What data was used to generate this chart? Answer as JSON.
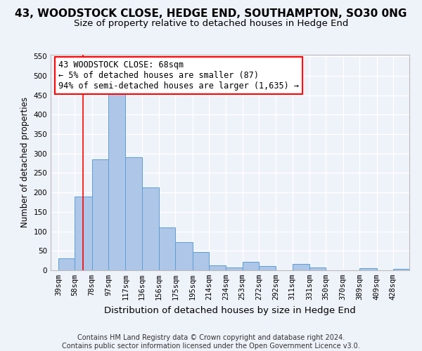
{
  "title1": "43, WOODSTOCK CLOSE, HEDGE END, SOUTHAMPTON, SO30 0NG",
  "title2": "Size of property relative to detached houses in Hedge End",
  "xlabel": "Distribution of detached houses by size in Hedge End",
  "ylabel": "Number of detached properties",
  "footer1": "Contains HM Land Registry data © Crown copyright and database right 2024.",
  "footer2": "Contains public sector information licensed under the Open Government Licence v3.0.",
  "bin_labels": [
    "39sqm",
    "58sqm",
    "78sqm",
    "97sqm",
    "117sqm",
    "136sqm",
    "156sqm",
    "175sqm",
    "195sqm",
    "214sqm",
    "234sqm",
    "253sqm",
    "272sqm",
    "292sqm",
    "311sqm",
    "331sqm",
    "350sqm",
    "370sqm",
    "389sqm",
    "409sqm",
    "428sqm"
  ],
  "bin_edges": [
    39,
    58,
    78,
    97,
    117,
    136,
    156,
    175,
    195,
    214,
    234,
    253,
    272,
    292,
    311,
    331,
    350,
    370,
    389,
    409,
    428
  ],
  "bar_heights": [
    30,
    190,
    285,
    460,
    290,
    213,
    110,
    73,
    47,
    13,
    8,
    22,
    10,
    0,
    17,
    7,
    0,
    0,
    5,
    0,
    4
  ],
  "bar_color": "#aec6e8",
  "bar_edge_color": "#5a9fd4",
  "vline_x": 68,
  "vline_color": "red",
  "annotation_line1": "43 WOODSTOCK CLOSE: 68sqm",
  "annotation_line2": "← 5% of detached houses are smaller (87)",
  "annotation_line3": "94% of semi-detached houses are larger (1,635) →",
  "annotation_box_color": "white",
  "annotation_box_edge": "red",
  "ylim": [
    0,
    555
  ],
  "xlim_min": 30,
  "xlim_max": 447,
  "bg_color": "#eef2f9",
  "grid_color": "white",
  "title_fontsize": 11,
  "subtitle_fontsize": 9.5,
  "xlabel_fontsize": 9.5,
  "ylabel_fontsize": 8.5,
  "tick_fontsize": 7.5,
  "footer_fontsize": 7,
  "annot_fontsize": 8.5
}
